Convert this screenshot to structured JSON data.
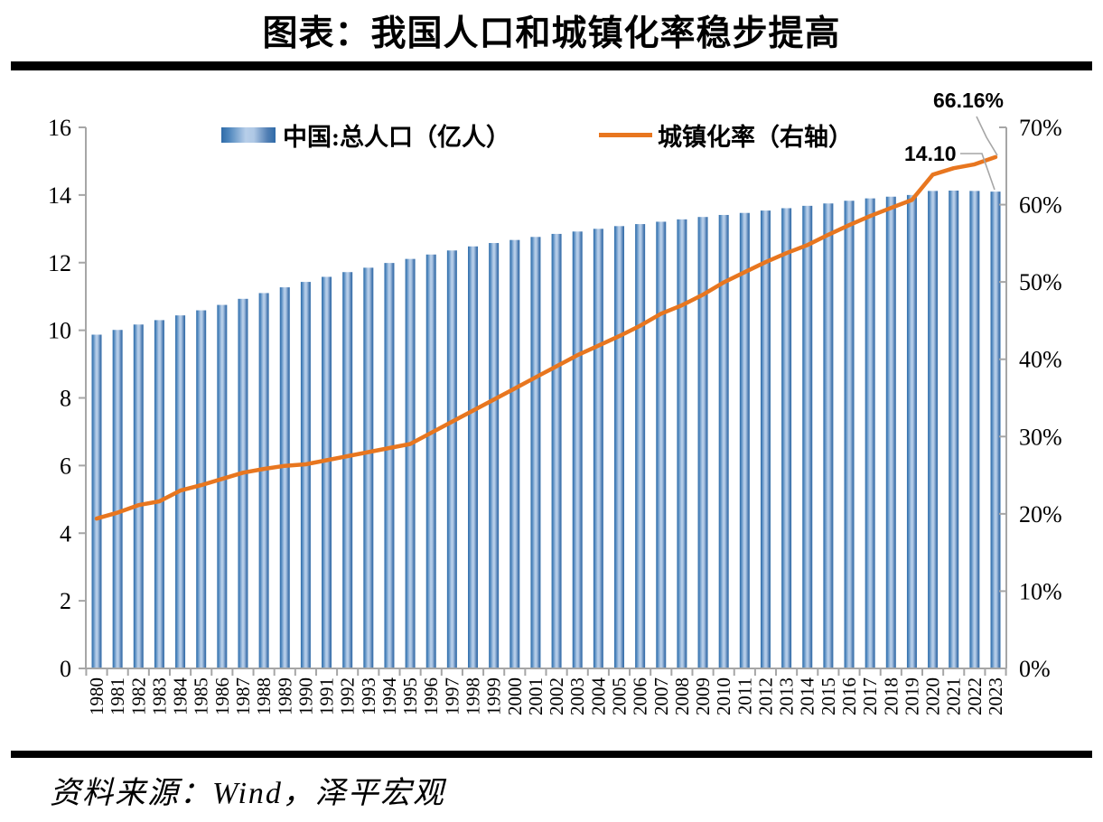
{
  "page": {
    "title": "图表：我国人口和城镇化率稳步提高",
    "source": "资料来源：Wind，泽平宏观"
  },
  "legend": {
    "bar_label": "中国:总人口（亿人）",
    "line_label": "城镇化率（右轴）"
  },
  "annotations": {
    "urbanization_end_label": "66.16%",
    "population_end_label": "14.10"
  },
  "colors": {
    "bar_edge": "#2E6BA8",
    "bar_light": "#B7CEE9",
    "line": "#E8761F",
    "axis": "#A6A6A6",
    "leader": "#A6A6A6",
    "text": "#000000"
  },
  "chart_data": {
    "type": "bar",
    "subtype": "bar+line combo, dual axis",
    "title": "图表：我国人口和城镇化率稳步提高",
    "categories": [
      "1980",
      "1981",
      "1982",
      "1983",
      "1984",
      "1985",
      "1986",
      "1987",
      "1988",
      "1989",
      "1990",
      "1991",
      "1992",
      "1993",
      "1994",
      "1995",
      "1996",
      "1997",
      "1998",
      "1999",
      "2000",
      "2001",
      "2002",
      "2003",
      "2004",
      "2005",
      "2006",
      "2007",
      "2008",
      "2009",
      "2010",
      "2011",
      "2012",
      "2013",
      "2014",
      "2015",
      "2016",
      "2017",
      "2018",
      "2019",
      "2020",
      "2021",
      "2022",
      "2023"
    ],
    "series": [
      {
        "name": "中国:总人口（亿人）",
        "type": "bar",
        "axis": "left",
        "values": [
          9.87,
          10.01,
          10.17,
          10.3,
          10.44,
          10.59,
          10.75,
          10.93,
          11.1,
          11.27,
          11.43,
          11.58,
          11.72,
          11.85,
          11.99,
          12.11,
          12.24,
          12.36,
          12.48,
          12.58,
          12.67,
          12.76,
          12.85,
          12.92,
          13.0,
          13.08,
          13.14,
          13.21,
          13.28,
          13.35,
          13.41,
          13.47,
          13.54,
          13.61,
          13.68,
          13.75,
          13.83,
          13.9,
          13.95,
          14.0,
          14.12,
          14.13,
          14.12,
          14.1
        ]
      },
      {
        "name": "城镇化率（右轴）",
        "type": "line",
        "axis": "right",
        "unit": "%",
        "values": [
          19.39,
          20.16,
          21.13,
          21.62,
          23.01,
          23.71,
          24.52,
          25.32,
          25.81,
          26.21,
          26.41,
          26.94,
          27.46,
          27.99,
          28.51,
          29.04,
          30.48,
          31.91,
          33.35,
          34.78,
          36.22,
          37.66,
          39.09,
          40.53,
          41.76,
          42.99,
          44.34,
          45.89,
          46.99,
          48.34,
          49.95,
          51.27,
          52.57,
          53.73,
          54.77,
          56.1,
          57.35,
          58.52,
          59.58,
          60.6,
          63.89,
          64.72,
          65.22,
          66.16
        ]
      }
    ],
    "left_axis": {
      "min": 0,
      "max": 16,
      "tick_step": 2,
      "tick_labels": [
        "0",
        "2",
        "4",
        "6",
        "8",
        "10",
        "12",
        "14",
        "16"
      ]
    },
    "right_axis": {
      "min": 0,
      "max": 70,
      "tick_step": 10,
      "tick_labels": [
        "0%",
        "10%",
        "20%",
        "30%",
        "40%",
        "50%",
        "60%",
        "70%"
      ]
    },
    "legend_position": "top",
    "grid": false,
    "x_tick_label_rotation": -90
  }
}
